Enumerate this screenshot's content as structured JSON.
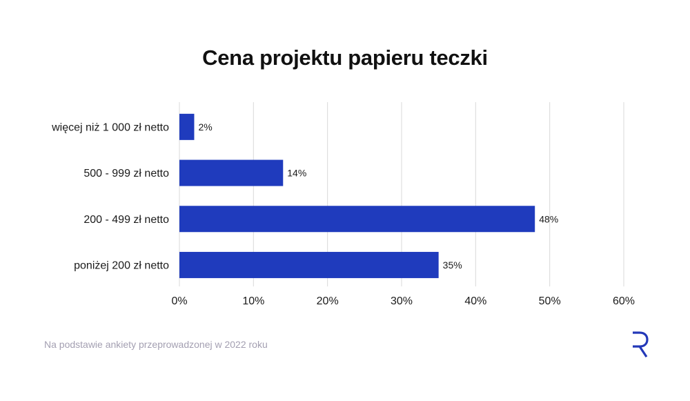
{
  "title": "Cena projektu papieru teczki",
  "footer": "Na podstawie ankiety przeprowadzonej w 2022 roku",
  "colors": {
    "bar": "#1f3bbd",
    "grid": "#d9d9d9",
    "logo": "#2338b8"
  },
  "logo_icon": "brand-r-logo",
  "chart_data": {
    "type": "bar",
    "orientation": "horizontal",
    "categories": [
      "więcej niż 1 000 zł netto",
      "500 - 999 zł netto",
      "200 - 499 zł netto",
      "poniżej 200 zł netto"
    ],
    "values": [
      2,
      14,
      48,
      35
    ],
    "value_labels": [
      "2%",
      "14%",
      "48%",
      "35%"
    ],
    "xticks": [
      0,
      10,
      20,
      30,
      40,
      50,
      60
    ],
    "xtick_labels": [
      "0%",
      "10%",
      "20%",
      "30%",
      "40%",
      "50%",
      "60%"
    ],
    "xlim": [
      0,
      60
    ],
    "grid": "vertical",
    "legend": "none"
  }
}
